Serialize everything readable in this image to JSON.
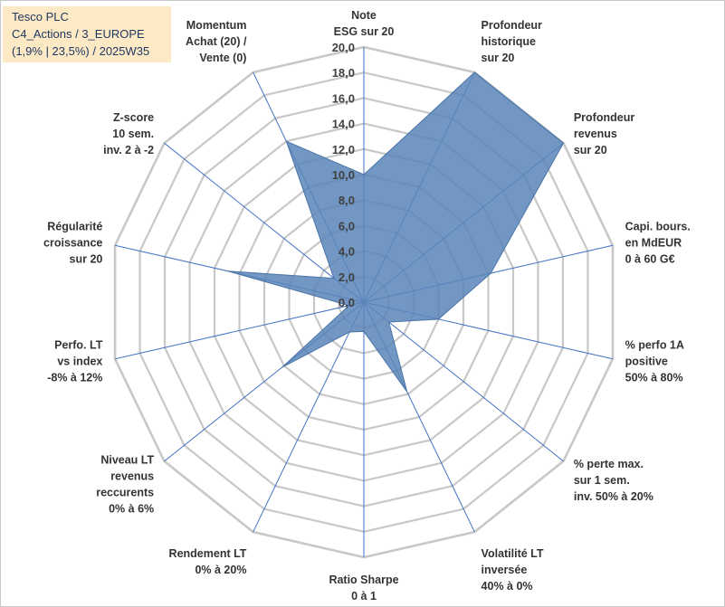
{
  "header": {
    "line1": "Tesco PLC",
    "line2": "C4_Actions / 3_EUROPE",
    "line3": "(1,9% | 23,5%) / 2025W35"
  },
  "chart_data": {
    "type": "radar",
    "rmin": 0,
    "rmax": 20,
    "ticks": [
      "0,0",
      "2,0",
      "4,0",
      "6,0",
      "8,0",
      "10,0",
      "12,0",
      "14,0",
      "16,0",
      "18,0",
      "20,0"
    ],
    "grid": true,
    "fill_color": "#5b86b9",
    "grid_color": "#c8c8c8",
    "axis_color": "#4472c4",
    "categories": [
      [
        "Note",
        "ESG sur 20"
      ],
      [
        "Profondeur",
        "historique",
        "sur 20"
      ],
      [
        "Profondeur",
        "revenus",
        "sur 20"
      ],
      [
        "Capi. bours.",
        "en MdEUR",
        "0 à 60 G€"
      ],
      [
        "% perfo 1A",
        "positive",
        "50% à 80%"
      ],
      [
        "% perte max.",
        "sur 1 sem.",
        "inv. 50% à 20%"
      ],
      [
        "Volatilité LT",
        "inversée",
        "40% à 0%"
      ],
      [
        "Ratio Sharpe",
        "0 à 1"
      ],
      [
        "Rendement LT",
        "0% à 20%"
      ],
      [
        "Niveau LT",
        "revenus",
        "reccurents",
        "0% à 6%"
      ],
      [
        "Perfo. LT",
        "vs index",
        "-8% à 12%"
      ],
      [
        "Régularité",
        "croissance",
        "sur 20"
      ],
      [
        "Z-score",
        "10 sem.",
        "inv. 2 à -2"
      ],
      [
        "Momentum",
        "Achat (20) /",
        "Vente (0)"
      ]
    ],
    "series": [
      {
        "values": [
          10.0,
          20.0,
          20.0,
          10.2,
          6.0,
          2.5,
          7.8,
          2.3,
          2.6,
          8.2,
          1.2,
          10.9,
          3.0,
          14.0
        ]
      }
    ]
  }
}
